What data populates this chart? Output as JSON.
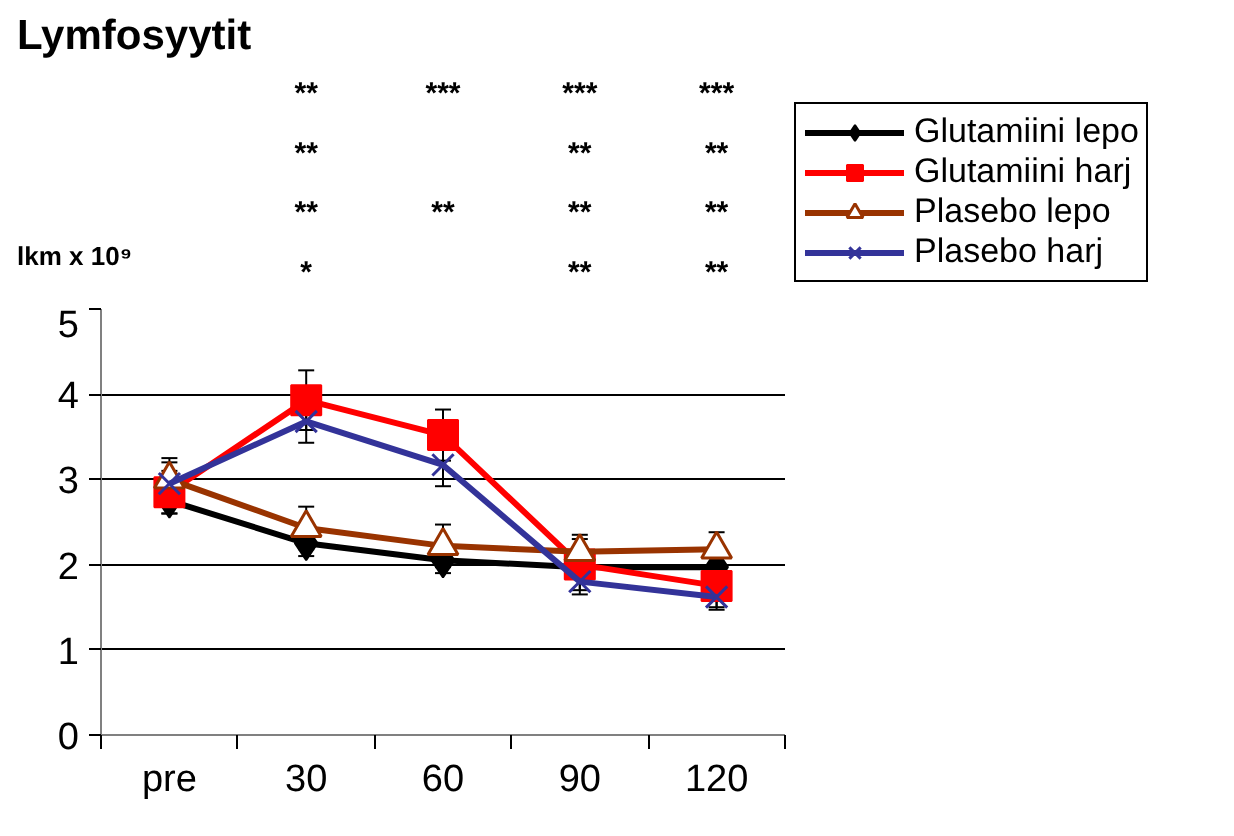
{
  "chart_data": {
    "type": "line",
    "title": "Lymfosyytit",
    "ylabel": "lkm x 10⁹",
    "categories": [
      "pre",
      "30",
      "60",
      "90",
      "120"
    ],
    "series": [
      {
        "name": "Glutamiini lepo",
        "color": "#000000",
        "marker": "diamond",
        "values": [
          2.75,
          2.25,
          2.05,
          1.97,
          1.97
        ],
        "errors": [
          0.15,
          0.15,
          0.15,
          null,
          null
        ]
      },
      {
        "name": "Glutamiini harj",
        "color": "#ff0000",
        "marker": "square",
        "values": [
          2.85,
          3.93,
          3.52,
          2.0,
          1.75
        ],
        "errors": [
          0.25,
          0.35,
          0.3,
          0.3,
          0.25
        ]
      },
      {
        "name": "Plasebo lepo",
        "color": "#993300",
        "marker": "triangle",
        "values": [
          3.0,
          2.43,
          2.22,
          2.15,
          2.18
        ],
        "errors": [
          0.25,
          0.25,
          0.25,
          0.2,
          0.2
        ]
      },
      {
        "name": "Plasebo harj",
        "color": "#333399",
        "marker": "cross",
        "values": [
          2.95,
          3.68,
          3.17,
          1.8,
          1.62
        ],
        "errors": [
          0.25,
          0.25,
          0.25,
          0.15,
          0.15
        ]
      }
    ],
    "ylim": [
      0,
      5
    ],
    "yticks": [
      0,
      1,
      2,
      3,
      4,
      5
    ],
    "grid": "y",
    "legend": "top right",
    "annotations": [
      "**\n**\n**\n*",
      "***\n\n**\n",
      "***\n**\n**\n**",
      "***\n**\n**\n**"
    ]
  }
}
